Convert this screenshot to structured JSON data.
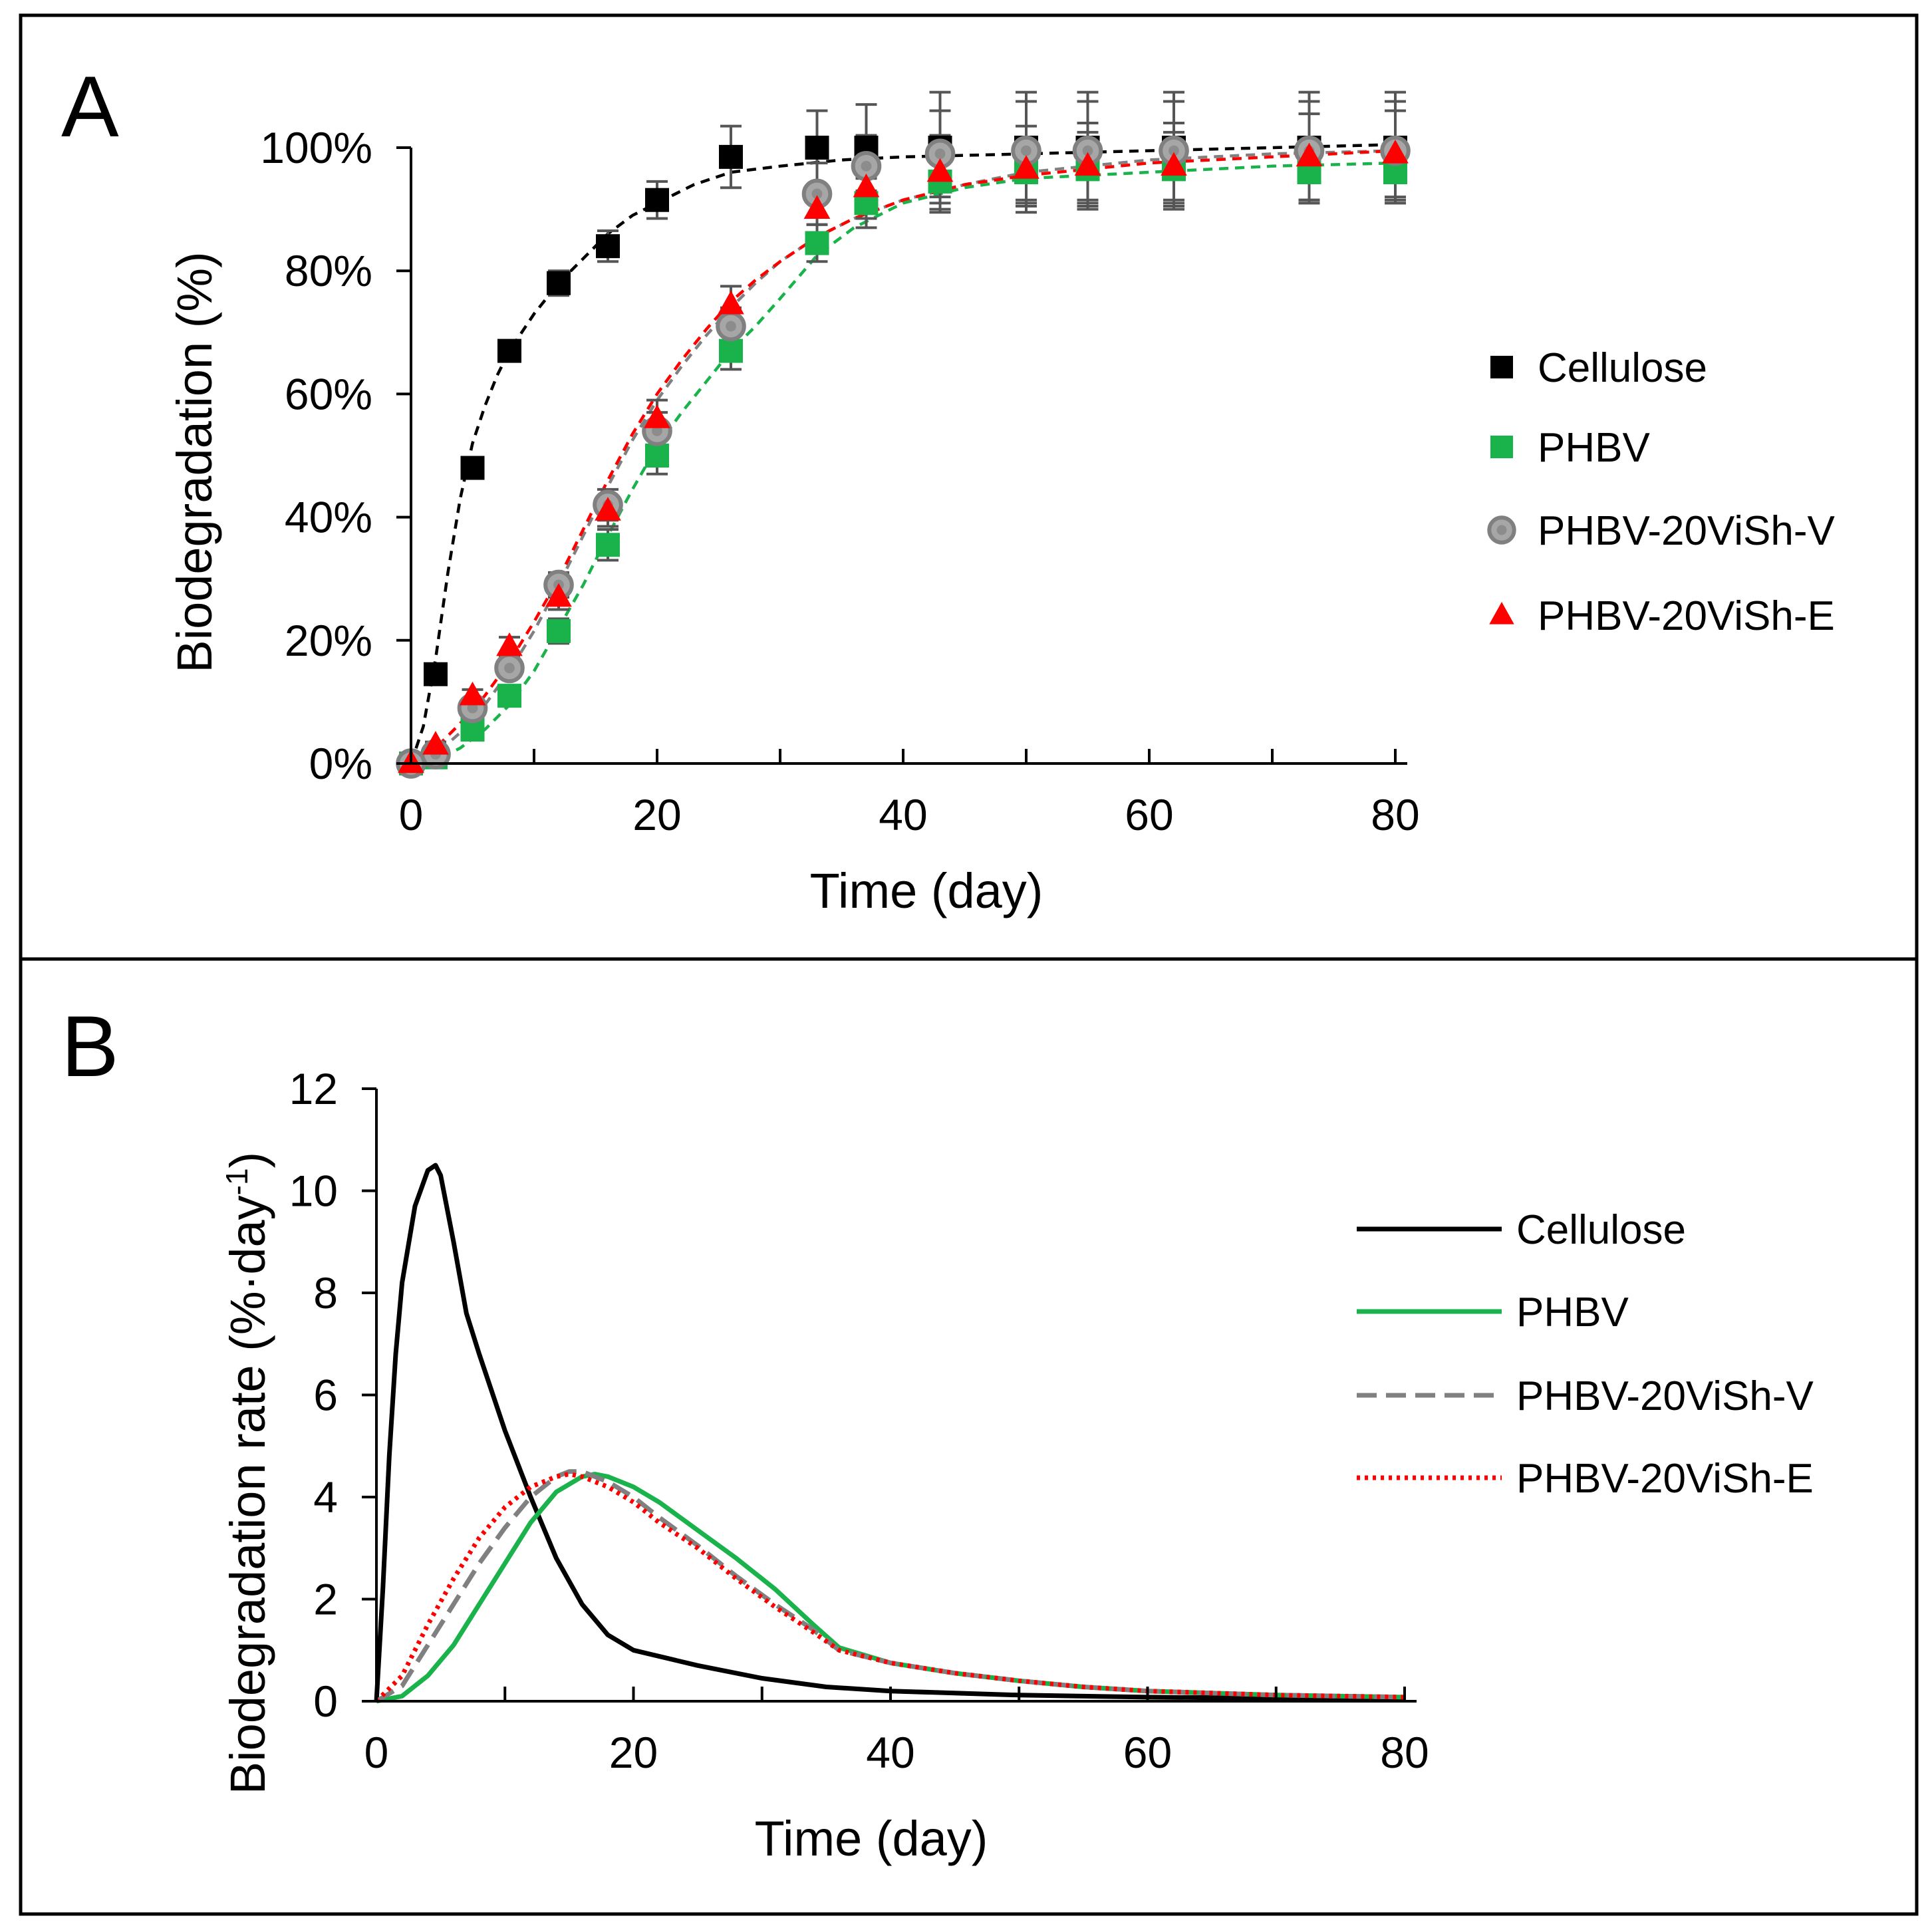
{
  "colors": {
    "cellulose": "#000000",
    "phbv": "#19b24b",
    "phbv_20vish_v": "#808080",
    "phbv_20vish_e": "#ff0000",
    "error_bar": "#555555"
  },
  "chart_data": [
    {
      "panel": "A",
      "type": "scatter",
      "xlabel": "Time  (day)",
      "ylabel": "Biodegradation  (%)",
      "xlim": [
        0,
        80
      ],
      "ylim": [
        0,
        110
      ],
      "x_ticks": [
        0,
        20,
        40,
        60,
        80
      ],
      "x_tick_labels": [
        "0",
        "20",
        "40",
        "60",
        "80"
      ],
      "x_minor_ticks": [
        10,
        30,
        50,
        70
      ],
      "y_ticks": [
        0,
        20,
        40,
        60,
        80,
        100
      ],
      "y_tick_labels": [
        "0%",
        "20%",
        "40%",
        "60%",
        "80%",
        "100%"
      ],
      "legend_position": "right",
      "series": [
        {
          "name": "Cellulose",
          "marker": "square",
          "color_key": "cellulose",
          "x": [
            0,
            2,
            5,
            8,
            12,
            16,
            20,
            26,
            33,
            37,
            43,
            50,
            55,
            62,
            73,
            80
          ],
          "y": [
            0,
            14.5,
            48,
            67,
            78,
            84,
            91.5,
            98.5,
            100,
            100,
            100,
            100,
            100,
            100,
            100,
            100
          ],
          "error": [
            0,
            1,
            1.5,
            1.5,
            2,
            2.5,
            3,
            5,
            6,
            7,
            9,
            9,
            9,
            9,
            9,
            9
          ],
          "fit_x": [
            0,
            1,
            2,
            3,
            4,
            5,
            6,
            7,
            8,
            10,
            12,
            14,
            16,
            18,
            20,
            23,
            26,
            30,
            35,
            40,
            50,
            60,
            70,
            80
          ],
          "fit_y": [
            0,
            6,
            17,
            31,
            43,
            52,
            58,
            63,
            67,
            73,
            78,
            82,
            86,
            89,
            91,
            94,
            96,
            97,
            98,
            98.5,
            99,
            99.5,
            100,
            100.5
          ]
        },
        {
          "name": "PHBV",
          "marker": "square",
          "color_key": "phbv",
          "x": [
            0,
            2,
            5,
            8,
            12,
            16,
            20,
            26,
            33,
            37,
            43,
            50,
            55,
            62,
            73,
            80
          ],
          "y": [
            0,
            1,
            5.5,
            11,
            21.5,
            35.5,
            50,
            67,
            84.5,
            91,
            94.5,
            96,
            96.5,
            96.5,
            96,
            96
          ],
          "error": [
            0,
            0.5,
            1,
            1.5,
            2,
            2.5,
            3,
            3,
            3,
            4,
            5,
            5.5,
            6,
            6,
            5,
            5
          ],
          "fit_x": [
            0,
            2,
            4,
            6,
            8,
            10,
            12,
            14,
            16,
            18,
            20,
            22,
            24,
            26,
            28,
            30,
            33,
            36,
            40,
            45,
            50,
            60,
            70,
            80
          ],
          "fit_y": [
            0,
            0.5,
            2.5,
            5.5,
            9.5,
            15,
            22,
            29,
            37,
            44.5,
            51.5,
            57,
            62,
            67,
            71,
            75.5,
            82.5,
            87,
            91,
            93.5,
            95,
            96,
            97,
            97.5
          ]
        },
        {
          "name": "PHBV-20ViSh-V",
          "marker": "circle",
          "color_key": "phbv_20vish_v",
          "x": [
            0,
            2,
            5,
            8,
            12,
            16,
            20,
            26,
            33,
            37,
            43,
            50,
            55,
            62,
            73,
            80
          ],
          "y": [
            0,
            1.5,
            9,
            15.5,
            29,
            42,
            54,
            71,
            92.5,
            97,
            99,
            99.5,
            99.5,
            99.5,
            99.5,
            99.5
          ],
          "error": [
            0,
            0.5,
            1,
            1.5,
            2,
            2.5,
            3,
            3,
            5,
            5,
            7,
            8,
            8,
            8,
            8,
            8
          ],
          "fit_x": [
            0,
            2,
            4,
            6,
            8,
            10,
            12,
            14,
            16,
            18,
            20,
            22,
            24,
            26,
            28,
            30,
            33,
            36,
            40,
            45,
            50,
            60,
            70,
            80
          ],
          "fit_y": [
            0,
            1.5,
            5,
            9.5,
            15,
            21.5,
            29,
            37,
            45,
            52.5,
            59,
            64.5,
            69.5,
            74,
            78,
            81.5,
            85.5,
            88.5,
            91.5,
            94,
            96,
            98,
            99,
            99.5
          ]
        },
        {
          "name": "PHBV-20ViSh-E",
          "marker": "triangle",
          "color_key": "phbv_20vish_e",
          "x": [
            0,
            2,
            5,
            8,
            12,
            16,
            20,
            26,
            33,
            37,
            43,
            50,
            55,
            62,
            73,
            80
          ],
          "y": [
            0,
            3,
            11,
            19,
            27,
            41,
            56,
            74.5,
            90,
            93.5,
            96,
            96.5,
            97,
            97,
            98.5,
            99
          ],
          "error": [
            0,
            0.5,
            1,
            1.5,
            2,
            2.5,
            3,
            3,
            4,
            5,
            6,
            7,
            7,
            7,
            7,
            7
          ],
          "fit_x": [
            0,
            2,
            4,
            6,
            8,
            10,
            12,
            14,
            16,
            18,
            20,
            22,
            24,
            26,
            28,
            30,
            33,
            36,
            40,
            45,
            50,
            60,
            70,
            80
          ],
          "fit_y": [
            0,
            2.5,
            6.5,
            11,
            16.5,
            23,
            30,
            38,
            46,
            53.5,
            60,
            65.5,
            70.5,
            75,
            78.5,
            81.5,
            85.5,
            88.5,
            91.5,
            94,
            95.5,
            97.5,
            98.5,
            99.5
          ]
        }
      ]
    },
    {
      "panel": "B",
      "type": "line",
      "xlabel": "Time (day)",
      "ylabel": "Biodegradation  rate (%·day",
      "ylabel_superscript": "-1",
      "ylabel_suffix": ")",
      "xlim": [
        0,
        80
      ],
      "ylim": [
        0,
        12
      ],
      "x_ticks": [
        0,
        20,
        40,
        60,
        80
      ],
      "x_tick_labels": [
        "0",
        "20",
        "40",
        "60",
        "80"
      ],
      "x_minor_ticks": [
        10,
        30,
        50,
        70
      ],
      "y_ticks": [
        0,
        2,
        4,
        6,
        8,
        10,
        12
      ],
      "y_tick_labels": [
        "0",
        "2",
        "4",
        "6",
        "8",
        "10",
        "12"
      ],
      "legend_position": "right",
      "series": [
        {
          "name": "Cellulose",
          "style": "solid",
          "color_key": "cellulose",
          "x": [
            0,
            0.5,
            1,
            1.5,
            2,
            3,
            4,
            4.6,
            5,
            6,
            7,
            8,
            10,
            12,
            14,
            16,
            18,
            20,
            25,
            30,
            35,
            40,
            50,
            60,
            70,
            80
          ],
          "y": [
            0,
            2.2,
            4.8,
            6.8,
            8.2,
            9.7,
            10.4,
            10.5,
            10.3,
            9.0,
            7.6,
            6.8,
            5.3,
            4.0,
            2.8,
            1.9,
            1.3,
            1.0,
            0.7,
            0.45,
            0.28,
            0.2,
            0.12,
            0.08,
            0.06,
            0.05
          ]
        },
        {
          "name": "PHBV",
          "style": "solid",
          "color_key": "phbv",
          "x": [
            0,
            2,
            4,
            6,
            8,
            10,
            12,
            14,
            16,
            17,
            18,
            20,
            22,
            25,
            28,
            31,
            34,
            36,
            40,
            45,
            50,
            55,
            60,
            70,
            80
          ],
          "y": [
            0,
            0.1,
            0.5,
            1.1,
            1.9,
            2.7,
            3.5,
            4.1,
            4.4,
            4.45,
            4.4,
            4.2,
            3.9,
            3.35,
            2.8,
            2.2,
            1.5,
            1.05,
            0.75,
            0.55,
            0.4,
            0.28,
            0.2,
            0.12,
            0.08
          ]
        },
        {
          "name": "PHBV-20ViSh-V",
          "style": "dashed",
          "color_key": "phbv_20vish_v",
          "x": [
            0,
            2,
            4,
            6,
            8,
            10,
            12,
            14,
            15,
            16,
            18,
            20,
            22,
            25,
            28,
            31,
            34,
            36,
            40,
            45,
            50,
            55,
            60,
            70,
            80
          ],
          "y": [
            0,
            0.3,
            1.1,
            1.9,
            2.7,
            3.4,
            4.0,
            4.4,
            4.5,
            4.5,
            4.3,
            4.0,
            3.6,
            3.05,
            2.45,
            1.9,
            1.4,
            1.0,
            0.75,
            0.55,
            0.4,
            0.28,
            0.2,
            0.12,
            0.08
          ]
        },
        {
          "name": "PHBV-20ViSh-E",
          "style": "dotted",
          "color_key": "phbv_20vish_e",
          "x": [
            0,
            2,
            4,
            6,
            8,
            10,
            12,
            14,
            15,
            16,
            18,
            20,
            22,
            25,
            28,
            31,
            34,
            36,
            40,
            45,
            50,
            55,
            60,
            70,
            80
          ],
          "y": [
            0,
            0.5,
            1.5,
            2.4,
            3.2,
            3.8,
            4.2,
            4.4,
            4.45,
            4.4,
            4.2,
            3.9,
            3.5,
            3.0,
            2.4,
            1.85,
            1.35,
            1.0,
            0.75,
            0.55,
            0.4,
            0.28,
            0.2,
            0.12,
            0.08
          ]
        }
      ]
    }
  ]
}
